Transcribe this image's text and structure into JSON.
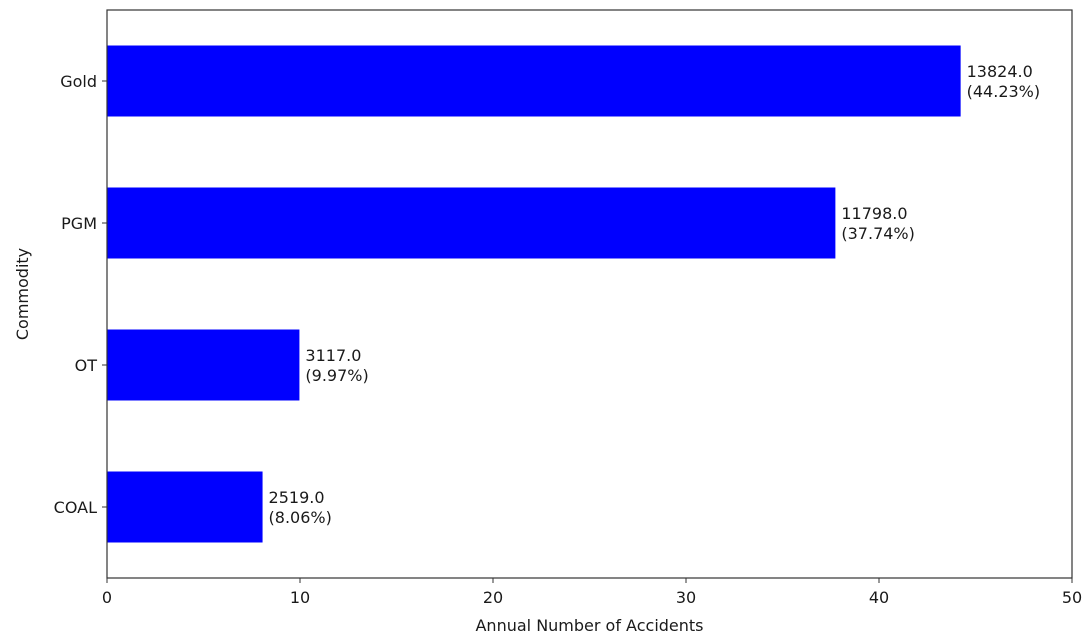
{
  "chart_data": {
    "type": "bar",
    "orientation": "horizontal",
    "categories": [
      "COAL",
      "OT",
      "PGM",
      "Gold"
    ],
    "values": [
      8.06,
      9.97,
      37.74,
      44.23
    ],
    "data_labels": [
      [
        "2519.0",
        "(8.06%)"
      ],
      [
        "3117.0",
        "(9.97%)"
      ],
      [
        "11798.0",
        "(37.74%)"
      ],
      [
        "13824.0",
        "(44.23%)"
      ]
    ],
    "xlabel": "Annual Number of Accidents",
    "ylabel": "Commodity",
    "xlim": [
      0,
      50
    ],
    "xticks": [
      0,
      10,
      20,
      30,
      40,
      50
    ],
    "bar_color": "#0000ff",
    "grid": false
  }
}
